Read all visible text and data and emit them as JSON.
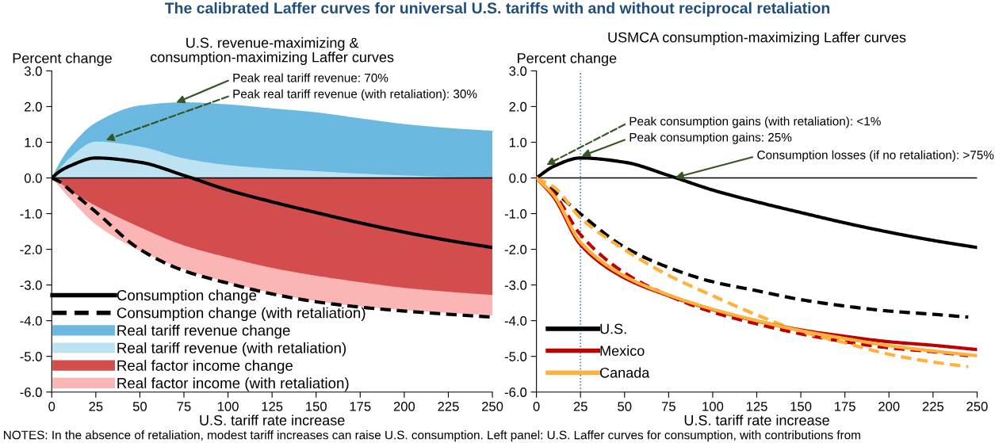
{
  "chart_data": [
    {
      "type": "area",
      "title": "U.S. revenue-maximizing &\nconsumption-maximizing Laffer curves",
      "xlabel": "U.S. tariff rate increase",
      "ylabel": "Percent change",
      "xlim": [
        0,
        250
      ],
      "ylim": [
        -6,
        3
      ],
      "xticks": [
        0,
        25,
        50,
        75,
        100,
        125,
        150,
        175,
        200,
        225,
        250
      ],
      "yticks": [
        {
          "value": 3,
          "label": "3.0"
        },
        {
          "value": 2,
          "label": "2.0"
        },
        {
          "value": 1,
          "label": "1.0"
        },
        {
          "value": 0,
          "label": "0.0"
        },
        {
          "value": -1,
          "label": "-1.0"
        },
        {
          "value": -2,
          "label": "-2.0"
        },
        {
          "value": -3,
          "label": "-3.0"
        },
        {
          "value": -4,
          "label": "-4.0"
        },
        {
          "value": -5,
          "label": "-5.0"
        },
        {
          "value": -6,
          "label": "-6.0"
        }
      ],
      "grid": false,
      "legend": "bottom left",
      "marker": "none",
      "ref_lines": [
        {
          "axis": "y",
          "value": 0,
          "color": "#000000",
          "line_style": "solid"
        }
      ],
      "annotations": [
        "The calibrated Laffer curves for universal U.S. tariffs with and without reciprocal retaliation",
        "NOTES: In the absence of retaliation, modest tariff increases can raise U.S. consumption. Left panel: U.S. Laffer curves for consumption, with contributions from",
        {
          "text": "Peak real tariff revenue: 70%",
          "x": 70,
          "y": 2.1
        },
        {
          "text": "Peak real tariff revenue (with retaliation): 30%",
          "x": 30,
          "y": 1.05
        }
      ],
      "series": [
        {
          "name": "Consumption change",
          "type": "line",
          "line_style": "solid",
          "color": "#000000",
          "x": [
            0,
            5,
            10,
            25,
            50,
            75,
            100,
            125,
            150,
            175,
            200,
            225,
            250
          ],
          "values": [
            0,
            0.2,
            0.33,
            0.56,
            0.44,
            0.07,
            -0.34,
            -0.67,
            -0.97,
            -1.26,
            -1.52,
            -1.75,
            -1.95
          ]
        },
        {
          "name": "Consumption change (with retaliation)",
          "type": "line",
          "line_style": "dashed",
          "color": "#000000",
          "x": [
            0,
            5,
            10,
            25,
            50,
            75,
            100,
            125,
            150,
            175,
            200,
            225,
            250
          ],
          "values": [
            0,
            -0.12,
            -0.33,
            -0.95,
            -2.0,
            -2.6,
            -2.95,
            -3.25,
            -3.47,
            -3.62,
            -3.73,
            -3.82,
            -3.9
          ]
        },
        {
          "name": "Real tariff revenue change",
          "type": "area",
          "color": "#6bb9e0",
          "x": [
            0,
            5,
            10,
            25,
            50,
            75,
            100,
            125,
            150,
            175,
            200,
            225,
            250
          ],
          "values": [
            0,
            0.47,
            0.84,
            1.55,
            2.03,
            2.12,
            2.06,
            1.95,
            1.84,
            1.67,
            1.51,
            1.4,
            1.32
          ]
        },
        {
          "name": "Real tariff revenue (with retaliation)",
          "type": "area",
          "color": "#bde3f3",
          "x": [
            0,
            5,
            10,
            25,
            50,
            75,
            100,
            125,
            150,
            175,
            200,
            225,
            250
          ],
          "values": [
            0,
            0.29,
            0.55,
            1.02,
            0.88,
            0.55,
            0.36,
            0.26,
            0.19,
            0.12,
            0.07,
            0.03,
            0.01
          ]
        },
        {
          "name": "Real factor income change",
          "type": "area",
          "color": "#d34d4d",
          "x": [
            0,
            5,
            10,
            25,
            50,
            75,
            100,
            125,
            150,
            175,
            200,
            225,
            250
          ],
          "values": [
            0,
            -0.15,
            -0.34,
            -0.78,
            -1.38,
            -1.89,
            -2.23,
            -2.52,
            -2.74,
            -2.92,
            -3.08,
            -3.19,
            -3.28
          ]
        },
        {
          "name": "Real factor income (with retaliation)",
          "type": "area",
          "color": "#fbb5b5",
          "x": [
            0,
            5,
            10,
            25,
            50,
            75,
            100,
            125,
            150,
            175,
            200,
            225,
            250
          ],
          "values": [
            0,
            -0.28,
            -0.56,
            -1.3,
            -2.04,
            -2.56,
            -2.93,
            -3.22,
            -3.45,
            -3.6,
            -3.7,
            -3.78,
            -3.85
          ]
        }
      ]
    },
    {
      "type": "line",
      "title": "USMCA consumption-maximizing Laffer curves",
      "xlabel": "U.S. tariff rate increase",
      "ylabel": "Percent change",
      "xlim": [
        0,
        250
      ],
      "ylim": [
        -6,
        3
      ],
      "xticks": [
        0,
        25,
        50,
        75,
        100,
        125,
        150,
        175,
        200,
        225,
        250
      ],
      "yticks": [
        {
          "value": 3,
          "label": "3.0"
        },
        {
          "value": 2,
          "label": "2.0"
        },
        {
          "value": 1,
          "label": "1.0"
        },
        {
          "value": 0,
          "label": "0.0"
        },
        {
          "value": -1,
          "label": "-1.0"
        },
        {
          "value": -2,
          "label": "-2.0"
        },
        {
          "value": -3,
          "label": "-3.0"
        },
        {
          "value": -4,
          "label": "-4.0"
        },
        {
          "value": -5,
          "label": "-5.0"
        },
        {
          "value": -6,
          "label": "-6.0"
        }
      ],
      "grid": false,
      "legend": "bottom left",
      "marker": "none",
      "ref_lines": [
        {
          "axis": "y",
          "value": 0,
          "color": "#000000",
          "line_style": "solid"
        },
        {
          "axis": "x",
          "value": 25,
          "color": "#2e75b6",
          "line_style": "dotted"
        }
      ],
      "annotations": [
        {
          "text": "Peak consumption gains (with retaliation): <1%",
          "x": 5,
          "y": 0.35
        },
        {
          "text": "Peak consumption gains: 25%",
          "x": 25,
          "y": 0.6
        },
        {
          "text": "Consumption losses (if no retaliation): >75%",
          "x": 78,
          "y": 0
        }
      ],
      "series": [
        {
          "line_style": "dashed",
          "color": "#000000",
          "x": [
            0,
            10,
            25,
            50,
            75,
            100,
            125,
            150,
            175,
            200,
            225,
            245
          ],
          "values": [
            0,
            -0.37,
            -1.01,
            -1.94,
            -2.51,
            -2.91,
            -3.16,
            -3.41,
            -3.59,
            -3.73,
            -3.82,
            -3.9
          ]
        },
        {
          "line_style": "dashed",
          "color": "#c00000",
          "x": [
            0,
            10,
            25,
            50,
            75,
            100,
            125,
            150,
            175,
            200,
            225,
            245
          ],
          "values": [
            0,
            -0.44,
            -1.59,
            -2.66,
            -3.3,
            -3.76,
            -4.09,
            -4.37,
            -4.59,
            -4.76,
            -4.87,
            -4.98
          ]
        },
        {
          "line_style": "dashed",
          "color": "#ffb13b",
          "x": [
            0,
            10,
            25,
            50,
            75,
            100,
            125,
            150,
            175,
            200,
            225,
            245
          ],
          "values": [
            0,
            -0.26,
            -1.12,
            -2.01,
            -2.73,
            -3.3,
            -3.84,
            -4.3,
            -4.62,
            -4.94,
            -5.16,
            -5.29
          ]
        },
        {
          "name": "U.S.",
          "line_style": "solid",
          "color": "#000000",
          "x": [
            0,
            10,
            25,
            50,
            75,
            100,
            125,
            150,
            175,
            200,
            225,
            250
          ],
          "values": [
            0,
            0.33,
            0.56,
            0.44,
            0.07,
            -0.34,
            -0.67,
            -0.97,
            -1.26,
            -1.52,
            -1.75,
            -1.95
          ]
        },
        {
          "name": "Mexico",
          "line_style": "solid",
          "color": "#c00000",
          "x": [
            0,
            10,
            25,
            50,
            75,
            100,
            125,
            150,
            175,
            200,
            225,
            250
          ],
          "values": [
            0,
            -0.55,
            -1.87,
            -2.8,
            -3.3,
            -3.69,
            -4.01,
            -4.26,
            -4.44,
            -4.59,
            -4.69,
            -4.81
          ]
        },
        {
          "name": "Canada",
          "line_style": "solid",
          "color": "#ffb13b",
          "x": [
            0,
            10,
            25,
            50,
            75,
            100,
            125,
            150,
            175,
            200,
            225,
            250
          ],
          "values": [
            0,
            -0.5,
            -1.8,
            -2.75,
            -3.28,
            -3.68,
            -4.0,
            -4.28,
            -4.5,
            -4.7,
            -4.85,
            -4.98
          ]
        }
      ]
    }
  ]
}
